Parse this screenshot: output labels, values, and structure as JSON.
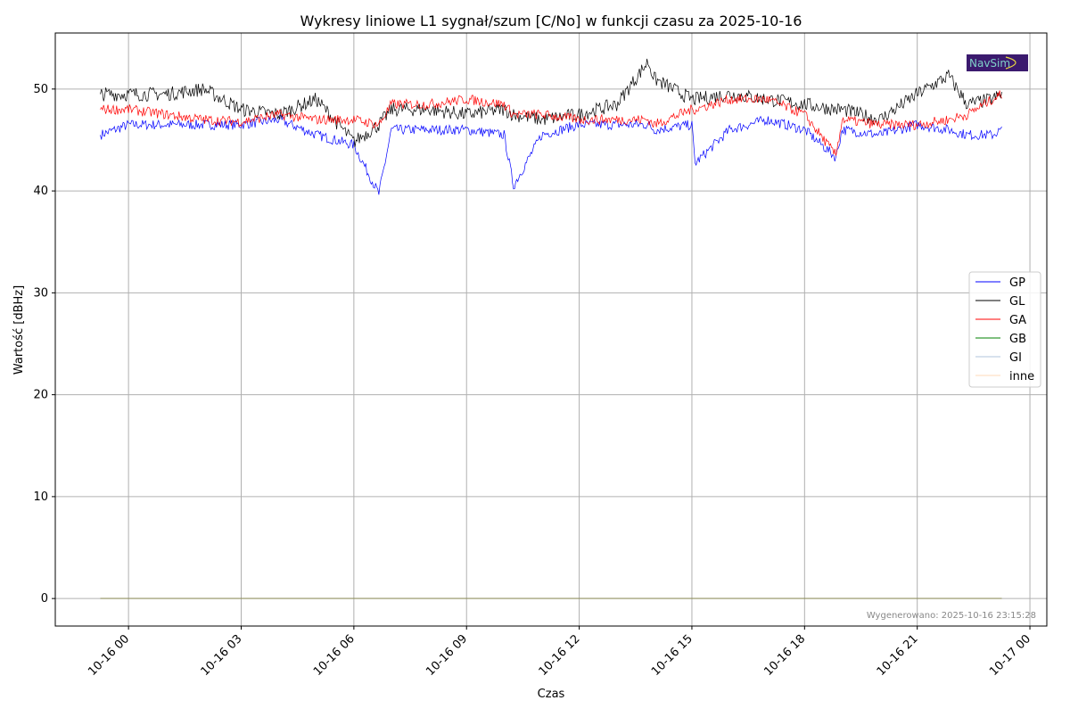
{
  "chart_data": {
    "type": "line",
    "title": "Wykresy liniowe L1 sygnał/szum [C/No] w funkcji czasu za 2025-10-16",
    "xlabel": "Czas",
    "ylabel": "Wartość [dBHz]",
    "xlim": [
      "2025-10-15 22:03",
      "2025-10-17 00:27"
    ],
    "ylim": [
      -2.7,
      55.5
    ],
    "grid": true,
    "legend_position": "center-right",
    "x_ticks": [
      "2025-10-16 00:00",
      "2025-10-16 03:00",
      "2025-10-16 06:00",
      "2025-10-16 09:00",
      "2025-10-16 12:00",
      "2025-10-16 15:00",
      "2025-10-16 18:00",
      "2025-10-16 21:00",
      "2025-10-17 00:00"
    ],
    "x_tick_labels": [
      "10-16 00",
      "10-16 03",
      "10-16 06",
      "10-16 09",
      "10-16 12",
      "10-16 15",
      "10-16 18",
      "10-16 21",
      "10-17 00"
    ],
    "y_ticks": [
      0,
      10,
      20,
      30,
      40,
      50
    ],
    "x": [
      "2025-10-15 23:15",
      "2025-10-16 00:00",
      "2025-10-16 01:00",
      "2025-10-16 02:00",
      "2025-10-16 03:00",
      "2025-10-16 04:00",
      "2025-10-16 05:00",
      "2025-10-16 06:00",
      "2025-10-16 06:40",
      "2025-10-16 07:00",
      "2025-10-16 08:00",
      "2025-10-16 09:00",
      "2025-10-16 10:00",
      "2025-10-16 10:15",
      "2025-10-16 11:00",
      "2025-10-16 12:00",
      "2025-10-16 13:00",
      "2025-10-16 13:50",
      "2025-10-16 14:00",
      "2025-10-16 15:00",
      "2025-10-16 15:05",
      "2025-10-16 16:00",
      "2025-10-16 17:00",
      "2025-10-16 18:00",
      "2025-10-16 18:50",
      "2025-10-16 19:00",
      "2025-10-16 20:00",
      "2025-10-16 21:00",
      "2025-10-16 21:50",
      "2025-10-16 22:20",
      "2025-10-16 23:00",
      "2025-10-16 23:15"
    ],
    "series": [
      {
        "name": "GP",
        "color": "#0000ff",
        "values": [
          45.5,
          46.5,
          46.5,
          46.5,
          46.5,
          47,
          45.5,
          44.5,
          39.7,
          46,
          46,
          46,
          45.5,
          40.5,
          45.5,
          46.5,
          46.5,
          46.5,
          46,
          46.5,
          42.7,
          46,
          47,
          46,
          43.3,
          46,
          45.5,
          46.5,
          46,
          45.5,
          45.5,
          46
        ]
      },
      {
        "name": "GL",
        "color": "#000000",
        "values": [
          49.5,
          49.5,
          49.5,
          50,
          48,
          47.5,
          49,
          44.8,
          46.5,
          48,
          48,
          47.5,
          48,
          47.5,
          47,
          47.5,
          48.5,
          52.7,
          51,
          49,
          49,
          49.5,
          49,
          48.5,
          48,
          48,
          47,
          49.5,
          51.3,
          48.5,
          49,
          49.5
        ]
      },
      {
        "name": "GA",
        "color": "#ff0000",
        "values": [
          48,
          48,
          47.5,
          47,
          46.8,
          47.5,
          47,
          47,
          46.5,
          48.5,
          48.5,
          49,
          48.5,
          47.5,
          47.5,
          47,
          47,
          47,
          46.5,
          48,
          48,
          49,
          49,
          47.5,
          43.5,
          47,
          46.5,
          46.5,
          47,
          47.5,
          49,
          49.5
        ]
      },
      {
        "name": "GB",
        "color": "#008000",
        "values": [
          0,
          0,
          0,
          0,
          0,
          0,
          0,
          0,
          0,
          0,
          0,
          0,
          0,
          0,
          0,
          0,
          0,
          0,
          0,
          0,
          0,
          0,
          0,
          0,
          0,
          0,
          0,
          0,
          0,
          0,
          0,
          0
        ]
      },
      {
        "name": "GI",
        "color": "#b0c4de",
        "values": [
          0,
          0,
          0,
          0,
          0,
          0,
          0,
          0,
          0,
          0,
          0,
          0,
          0,
          0,
          0,
          0,
          0,
          0,
          0,
          0,
          0,
          0,
          0,
          0,
          0,
          0,
          0,
          0,
          0,
          0,
          0,
          0
        ]
      },
      {
        "name": "inne",
        "color": "#ffdab9",
        "values": [
          0,
          0,
          0,
          0,
          0,
          0,
          0,
          0,
          0,
          0,
          0,
          0,
          0,
          0,
          0,
          0,
          0,
          0,
          0,
          0,
          0,
          0,
          0,
          0,
          0,
          0,
          0,
          0,
          0,
          0,
          0,
          0
        ]
      }
    ],
    "annotation": "Wygenerowano: 2025-10-16 23:15:28",
    "logo": "NavSim"
  }
}
